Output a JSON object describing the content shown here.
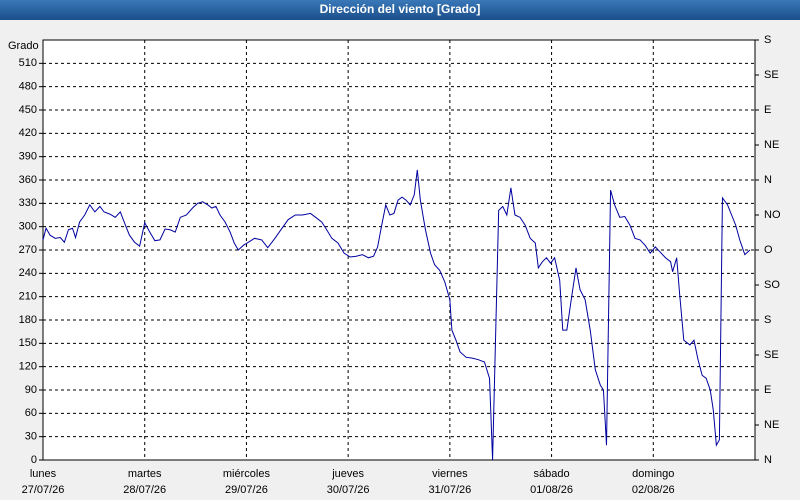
{
  "chart_data": {
    "type": "line",
    "title": "Dirección del viento [Grado]",
    "y_label": "Grado",
    "xlim": [
      0,
      7
    ],
    "xticks": [
      {
        "value": 0,
        "label": "lunes"
      },
      {
        "value": 1,
        "label": "martes"
      },
      {
        "value": 2,
        "label": "miércoles"
      },
      {
        "value": 3,
        "label": "jueves"
      },
      {
        "value": 4,
        "label": "viernes"
      },
      {
        "value": 5,
        "label": "sábado"
      },
      {
        "value": 6,
        "label": "domingo"
      }
    ],
    "xtick_dates": [
      "27/07/26",
      "28/07/26",
      "29/07/26",
      "30/07/26",
      "31/07/26",
      "01/08/26",
      "02/08/26"
    ],
    "ylim": [
      0,
      540
    ],
    "yticks": [
      0,
      30,
      60,
      90,
      120,
      150,
      180,
      210,
      240,
      270,
      300,
      330,
      360,
      390,
      420,
      450,
      480,
      510
    ],
    "y2lim": [
      0,
      540
    ],
    "y2ticks": [
      {
        "value": 0,
        "label": "N"
      },
      {
        "value": 45,
        "label": "NE"
      },
      {
        "value": 90,
        "label": "E"
      },
      {
        "value": 135,
        "label": "SE"
      },
      {
        "value": 180,
        "label": "S"
      },
      {
        "value": 225,
        "label": "SO"
      },
      {
        "value": 270,
        "label": "O"
      },
      {
        "value": 315,
        "label": "NO"
      },
      {
        "value": 360,
        "label": "N"
      },
      {
        "value": 405,
        "label": "NE"
      },
      {
        "value": 450,
        "label": "E"
      },
      {
        "value": 495,
        "label": "SE"
      },
      {
        "value": 540,
        "label": "S"
      }
    ],
    "grid": true,
    "x": [
      0,
      0.03,
      0.07,
      0.12,
      0.17,
      0.21,
      0.25,
      0.29,
      0.32,
      0.36,
      0.41,
      0.46,
      0.51,
      0.56,
      0.6,
      0.66,
      0.71,
      0.76,
      0.81,
      0.85,
      0.9,
      0.95,
      1.0,
      1.05,
      1.1,
      1.15,
      1.2,
      1.25,
      1.3,
      1.35,
      1.41,
      1.47,
      1.52,
      1.57,
      1.62,
      1.66,
      1.7,
      1.74,
      1.79,
      1.84,
      1.88,
      1.92,
      1.97,
      2.02,
      2.08,
      2.15,
      2.21,
      2.28,
      2.35,
      2.41,
      2.48,
      2.55,
      2.63,
      2.68,
      2.74,
      2.78,
      2.84,
      2.9,
      2.96,
      3.02,
      3.08,
      3.14,
      3.2,
      3.25,
      3.29,
      3.33,
      3.37,
      3.41,
      3.45,
      3.49,
      3.53,
      3.57,
      3.61,
      3.65,
      3.68,
      3.71,
      3.76,
      3.81,
      3.85,
      3.9,
      3.95,
      4.0,
      4.02,
      4.06,
      4.1,
      4.16,
      4.22,
      4.28,
      4.34,
      4.39,
      4.42,
      4.48,
      4.52,
      4.56,
      4.6,
      4.64,
      4.69,
      4.74,
      4.79,
      4.84,
      4.87,
      4.91,
      4.95,
      4.99,
      5.03,
      5.08,
      5.11,
      5.15,
      5.2,
      5.24,
      5.28,
      5.33,
      5.38,
      5.43,
      5.48,
      5.51,
      5.54,
      5.58,
      5.62,
      5.67,
      5.72,
      5.77,
      5.82,
      5.87,
      5.92,
      5.97,
      6.02,
      6.07,
      6.12,
      6.17,
      6.19,
      6.23,
      6.26,
      6.3,
      6.36,
      6.4,
      6.44,
      6.48,
      6.52,
      6.56,
      6.59,
      6.62,
      6.65,
      6.68,
      6.73,
      6.77,
      6.81,
      6.85,
      6.9,
      6.95
    ],
    "series": [
      {
        "color": "#0000a0",
        "values": [
          283,
          298,
          289,
          285,
          286,
          280,
          296,
          298,
          286,
          306,
          315,
          328,
          319,
          326,
          319,
          316,
          312,
          319,
          302,
          289,
          280,
          275,
          305,
          293,
          282,
          283,
          297,
          296,
          293,
          312,
          315,
          324,
          330,
          332,
          328,
          324,
          326,
          315,
          306,
          293,
          279,
          270,
          276,
          280,
          285,
          283,
          273,
          285,
          298,
          309,
          315,
          315,
          317,
          312,
          306,
          298,
          285,
          279,
          266,
          261,
          262,
          264,
          260,
          262,
          274,
          302,
          328,
          315,
          317,
          334,
          338,
          334,
          328,
          341,
          373,
          334,
          296,
          266,
          251,
          244,
          229,
          206,
          167,
          154,
          139,
          132,
          131,
          129,
          126,
          105,
          0,
          321,
          326,
          315,
          350,
          315,
          312,
          302,
          285,
          279,
          247,
          255,
          260,
          253,
          260,
          231,
          167,
          167,
          212,
          247,
          219,
          206,
          167,
          116,
          96,
          90,
          19,
          347,
          328,
          312,
          313,
          302,
          285,
          283,
          276,
          266,
          274,
          267,
          260,
          255,
          242,
          260,
          212,
          154,
          148,
          154,
          129,
          109,
          105,
          90,
          64,
          19,
          26,
          337,
          328,
          315,
          302,
          283,
          264,
          270
        ]
      }
    ]
  }
}
